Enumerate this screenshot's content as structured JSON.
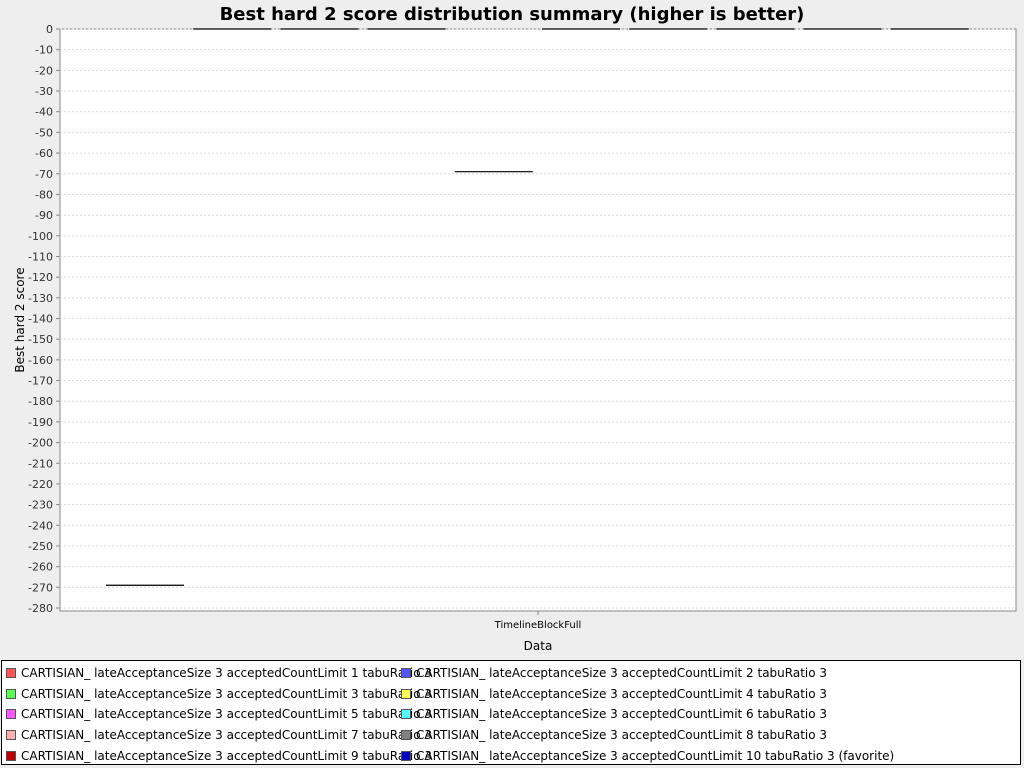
{
  "chart_data": {
    "type": "box",
    "title": "Best hard 2 score distribution summary (higher is better)",
    "xlabel": "Data",
    "ylabel": "Best hard 2 score",
    "categories": [
      "TimelineBlockFull"
    ],
    "ylim": [
      -280,
      0
    ],
    "ytick_step": 10,
    "grid": true,
    "legend_position": "bottom",
    "series": [
      {
        "name": "CARTISIAN_ lateAcceptanceSize 3 acceptedCountLimit 1 tabuRatio 3",
        "color": "#ff5555",
        "values": [
          -269
        ]
      },
      {
        "name": "CARTISIAN_ lateAcceptanceSize 3 acceptedCountLimit 2 tabuRatio 3",
        "color": "#5555ff",
        "values": [
          0
        ]
      },
      {
        "name": "CARTISIAN_ lateAcceptanceSize 3 acceptedCountLimit 3 tabuRatio 3",
        "color": "#55ff55",
        "values": [
          0
        ]
      },
      {
        "name": "CARTISIAN_ lateAcceptanceSize 3 acceptedCountLimit 4 tabuRatio 3",
        "color": "#ffff55",
        "values": [
          0
        ]
      },
      {
        "name": "CARTISIAN_ lateAcceptanceSize 3 acceptedCountLimit 5 tabuRatio 3",
        "color": "#ff55ff",
        "values": [
          -69
        ]
      },
      {
        "name": "CARTISIAN_ lateAcceptanceSize 3 acceptedCountLimit 6 tabuRatio 3",
        "color": "#55ffff",
        "values": [
          0
        ]
      },
      {
        "name": "CARTISIAN_ lateAcceptanceSize 3 acceptedCountLimit 7 tabuRatio 3",
        "color": "#ffafaf",
        "values": [
          0
        ]
      },
      {
        "name": "CARTISIAN_ lateAcceptanceSize 3 acceptedCountLimit 8 tabuRatio 3",
        "color": "#808080",
        "values": [
          0
        ]
      },
      {
        "name": "CARTISIAN_ lateAcceptanceSize 3 acceptedCountLimit 9 tabuRatio 3",
        "color": "#c00000",
        "values": [
          0
        ]
      },
      {
        "name": "CARTISIAN_ lateAcceptanceSize 3 acceptedCountLimit 10 tabuRatio 3 (favorite)",
        "color": "#0000c0",
        "values": [
          0
        ]
      }
    ]
  }
}
